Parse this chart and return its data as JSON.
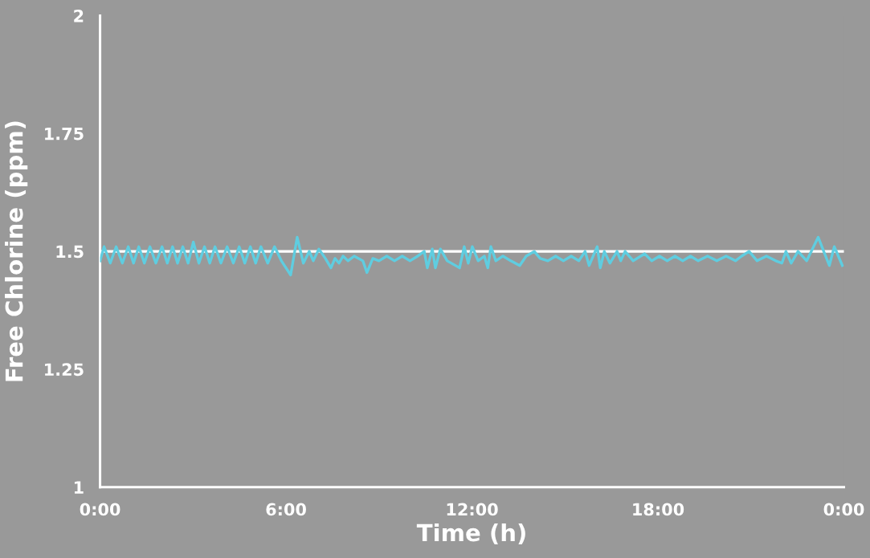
{
  "chart_data": {
    "type": "line",
    "xlabel": "Time (h)",
    "ylabel": "Free Chlorine (ppm)",
    "xlim": [
      0,
      24
    ],
    "xticks": [
      {
        "value": 0,
        "label": "0:00"
      },
      {
        "value": 6,
        "label": "6:00"
      },
      {
        "value": 12,
        "label": "12:00"
      },
      {
        "value": 18,
        "label": "18:00"
      },
      {
        "value": 24,
        "label": "0:00"
      }
    ],
    "ylim": [
      1,
      2
    ],
    "yticks": [
      1,
      1.25,
      1.5,
      1.75,
      2
    ],
    "grid": false,
    "marker": "none",
    "line_style": "solid",
    "ref_lines": [
      {
        "axis": "y",
        "value": 1.5,
        "color": "#ffffff",
        "line_style": "solid"
      }
    ],
    "series": [
      {
        "color": "#5fcde0",
        "x": [
          0,
          0.13,
          0.33,
          0.52,
          0.72,
          0.91,
          1.08,
          1.25,
          1.43,
          1.61,
          1.8,
          2.0,
          2.17,
          2.34,
          2.5,
          2.67,
          2.84,
          3.01,
          3.19,
          3.37,
          3.54,
          3.71,
          3.9,
          4.1,
          4.3,
          4.49,
          4.67,
          4.85,
          5.02,
          5.19,
          5.41,
          5.63,
          5.85,
          6.15,
          6.36,
          6.56,
          6.75,
          6.88,
          7.06,
          7.27,
          7.45,
          7.58,
          7.71,
          7.84,
          8.0,
          8.2,
          8.48,
          8.61,
          8.8,
          9.0,
          9.25,
          9.5,
          9.75,
          10.0,
          10.25,
          10.46,
          10.56,
          10.72,
          10.82,
          10.98,
          11.2,
          11.6,
          11.75,
          11.88,
          12.01,
          12.2,
          12.4,
          12.51,
          12.61,
          12.77,
          13.0,
          13.25,
          13.54,
          13.75,
          14.01,
          14.2,
          14.45,
          14.7,
          14.95,
          15.2,
          15.45,
          15.65,
          15.78,
          16.04,
          16.14,
          16.27,
          16.45,
          16.68,
          16.8,
          16.94,
          17.2,
          17.57,
          17.8,
          18.05,
          18.3,
          18.55,
          18.8,
          19.05,
          19.3,
          19.6,
          19.9,
          20.2,
          20.5,
          20.7,
          20.94,
          21.2,
          21.5,
          21.8,
          22.0,
          22.13,
          22.3,
          22.52,
          22.8,
          23.17,
          23.35,
          23.53,
          23.69,
          23.95
        ],
        "values": [
          1.48,
          1.51,
          1.475,
          1.51,
          1.475,
          1.51,
          1.475,
          1.51,
          1.475,
          1.51,
          1.475,
          1.51,
          1.475,
          1.51,
          1.475,
          1.51,
          1.475,
          1.52,
          1.475,
          1.51,
          1.475,
          1.51,
          1.475,
          1.51,
          1.475,
          1.51,
          1.475,
          1.51,
          1.475,
          1.51,
          1.475,
          1.51,
          1.48,
          1.45,
          1.53,
          1.475,
          1.5,
          1.48,
          1.505,
          1.485,
          1.465,
          1.485,
          1.475,
          1.49,
          1.48,
          1.49,
          1.48,
          1.455,
          1.485,
          1.48,
          1.49,
          1.48,
          1.49,
          1.48,
          1.49,
          1.5,
          1.465,
          1.505,
          1.465,
          1.505,
          1.48,
          1.465,
          1.51,
          1.475,
          1.51,
          1.48,
          1.49,
          1.465,
          1.51,
          1.48,
          1.49,
          1.48,
          1.47,
          1.49,
          1.5,
          1.485,
          1.48,
          1.49,
          1.48,
          1.49,
          1.48,
          1.5,
          1.47,
          1.51,
          1.465,
          1.5,
          1.475,
          1.5,
          1.48,
          1.5,
          1.48,
          1.495,
          1.48,
          1.49,
          1.48,
          1.49,
          1.48,
          1.49,
          1.48,
          1.49,
          1.48,
          1.49,
          1.48,
          1.49,
          1.5,
          1.48,
          1.49,
          1.48,
          1.475,
          1.5,
          1.475,
          1.5,
          1.48,
          1.53,
          1.5,
          1.47,
          1.51,
          1.47
        ]
      }
    ]
  }
}
